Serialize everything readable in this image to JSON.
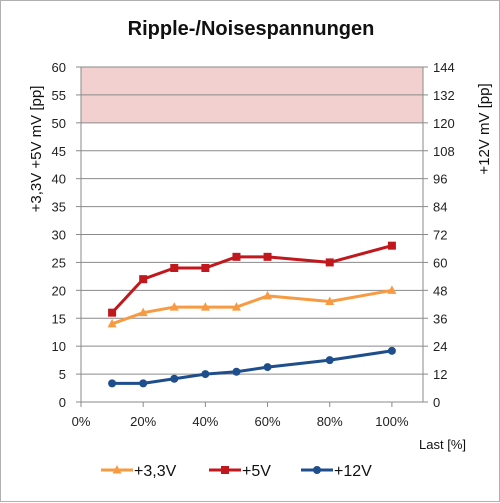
{
  "chart_data": {
    "type": "line",
    "title": "Ripple-/Noisespannungen",
    "xlabel": "Last [%]",
    "ylabel_left": "+3,3V  +5V    mV [pp]",
    "ylabel_right": "+12V    mV [pp]",
    "xlim": [
      0,
      110
    ],
    "x_ticks": [
      "0%",
      "20%",
      "40%",
      "60%",
      "80%",
      "100%"
    ],
    "ylim_left": [
      0,
      60
    ],
    "y_ticks_left": [
      "0",
      "5",
      "10",
      "15",
      "20",
      "25",
      "30",
      "35",
      "40",
      "45",
      "50",
      "55",
      "60"
    ],
    "ylim_right": [
      0,
      144
    ],
    "y_ticks_right": [
      "0",
      "12",
      "24",
      "36",
      "48",
      "60",
      "72",
      "84",
      "96",
      "108",
      "120",
      "132",
      "144"
    ],
    "grid": true,
    "limit_band": {
      "from": 50,
      "to": 60,
      "axis": "left",
      "color": "#f2d0d0"
    },
    "legend_position": "bottom",
    "series": [
      {
        "name": "+3,3V",
        "axis": "left",
        "color": "#f79b43",
        "marker": "triangle",
        "x": [
          10,
          20,
          30,
          40,
          50,
          60,
          80,
          100
        ],
        "values": [
          14,
          16,
          17,
          17,
          17,
          19,
          18,
          20
        ]
      },
      {
        "name": "+5V",
        "axis": "left",
        "color": "#c0181c",
        "marker": "square",
        "x": [
          10,
          20,
          30,
          40,
          50,
          60,
          80,
          100
        ],
        "values": [
          16,
          22,
          24,
          24,
          26,
          26,
          25,
          28
        ]
      },
      {
        "name": "+12V",
        "axis": "right",
        "color": "#1f4e8c",
        "marker": "circle",
        "x": [
          10,
          20,
          30,
          40,
          50,
          60,
          80,
          100
        ],
        "values": [
          8,
          8,
          10,
          12,
          13,
          15,
          18,
          22
        ]
      }
    ]
  }
}
